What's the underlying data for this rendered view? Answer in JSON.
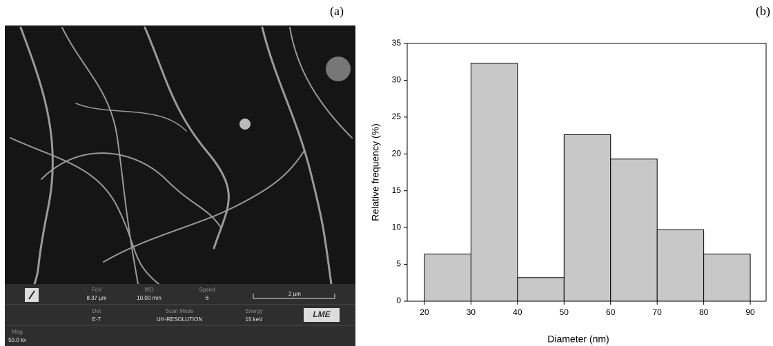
{
  "panel_a": {
    "panel_label": "(a)",
    "info": {
      "fov_label": "FoV",
      "fov": "8.37 µm",
      "wd_label": "WD",
      "wd": "10.00 mm",
      "speed_label": "Speed",
      "speed": "6",
      "scale": "2 µm",
      "det_label": "Det",
      "det": "E-T",
      "scan_label": "Scan Mode",
      "scan": "UH-RESOLUTION",
      "energy_label": "Energy",
      "energy": "15 keV",
      "logo": "LME",
      "mag_label": "Mag",
      "mag": "50.0 kx"
    }
  },
  "chart_data": {
    "type": "histogram",
    "panel_label": "(b)",
    "x_label": "Diameter (nm)",
    "y_label": "Relative frequency (%)",
    "bins": [
      20,
      30,
      40,
      50,
      60,
      70,
      80,
      90
    ],
    "values": [
      6.4,
      32.3,
      3.2,
      22.6,
      19.3,
      9.7,
      6.4
    ],
    "color": "#c8c8c8",
    "xlim": [
      16.3,
      93.4
    ],
    "xticks": [
      20,
      30,
      40,
      50,
      60,
      70,
      80,
      90
    ],
    "ylim": [
      0,
      35
    ],
    "yticks": [
      0,
      5,
      10,
      15,
      20,
      25,
      30,
      35
    ]
  }
}
